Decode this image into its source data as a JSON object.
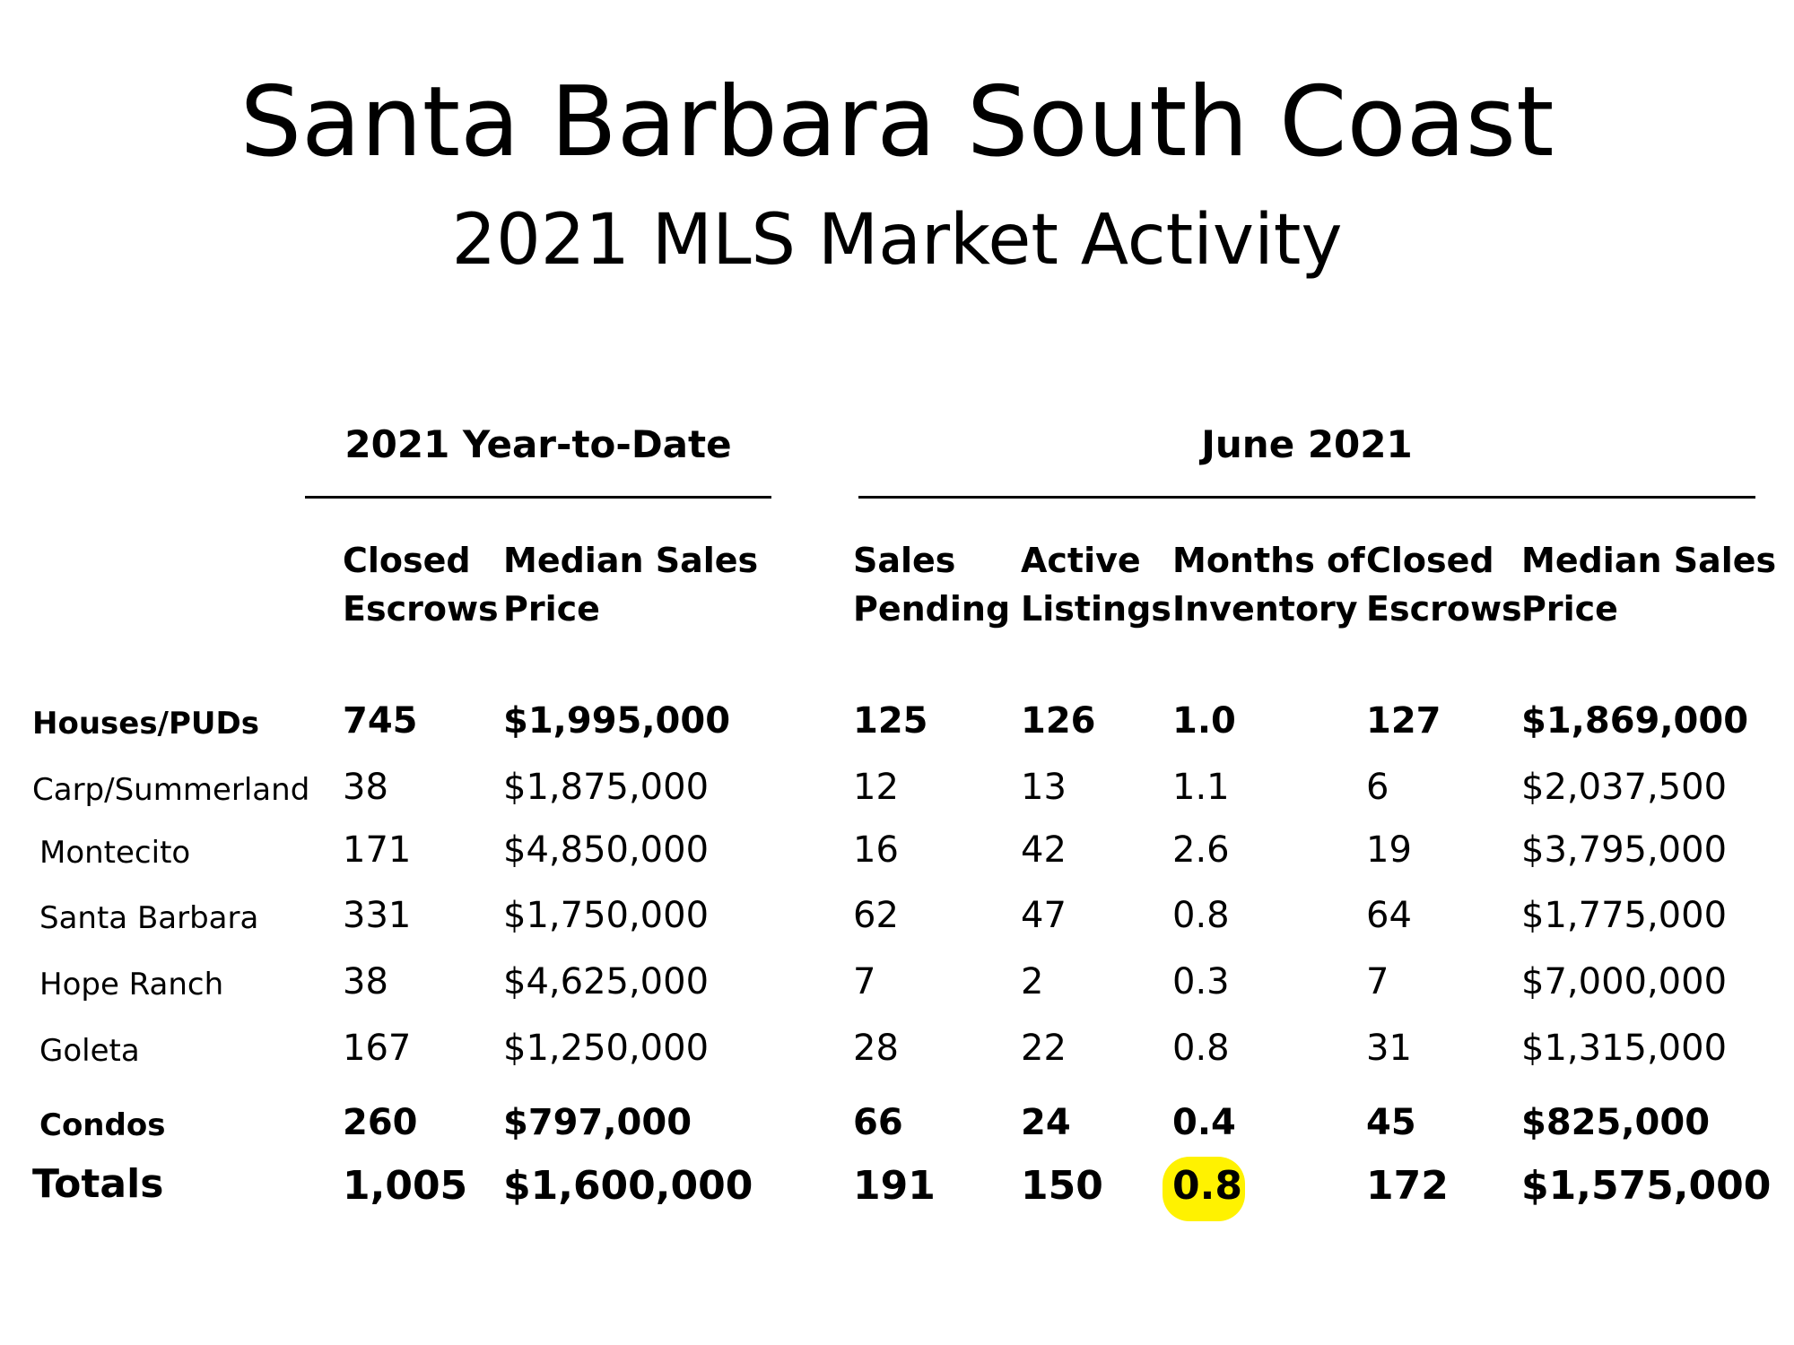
{
  "title": "Santa Barbara South Coast",
  "subtitle": "2021 MLS Market Activity",
  "groups": {
    "ytd": "2021 Year-to-Date",
    "month": "June 2021"
  },
  "columns": [
    "Closed\nEscrows",
    "Median Sales\nPrice",
    "Sales\nPending",
    "Active\nListings",
    "Months of\nInventory",
    "Closed\nEscrows",
    "Median Sales\nPrice"
  ],
  "rows": [
    {
      "label": "Houses/PUDs",
      "bold": true,
      "values": [
        "745",
        "$1,995,000",
        "125",
        "126",
        "1.0",
        "127",
        "$1,869,000"
      ]
    },
    {
      "label": "Carp/Summerland",
      "bold": false,
      "values": [
        "38",
        "$1,875,000",
        "12",
        "13",
        "1.1",
        "6",
        "$2,037,500"
      ]
    },
    {
      "label": "Montecito",
      "bold": false,
      "values": [
        "171",
        "$4,850,000",
        "16",
        "42",
        "2.6",
        "19",
        "$3,795,000"
      ]
    },
    {
      "label": "Santa Barbara",
      "bold": false,
      "values": [
        "331",
        "$1,750,000",
        "62",
        "47",
        "0.8",
        "64",
        "$1,775,000"
      ]
    },
    {
      "label": "Hope Ranch",
      "bold": false,
      "values": [
        "38",
        "$4,625,000",
        "7",
        "2",
        "0.3",
        "7",
        "$7,000,000"
      ]
    },
    {
      "label": "Goleta",
      "bold": false,
      "values": [
        "167",
        "$1,250,000",
        "28",
        "22",
        "0.8",
        "31",
        "$1,315,000"
      ]
    },
    {
      "label": "Condos",
      "bold": true,
      "values": [
        "260",
        "$797,000",
        "66",
        "24",
        "0.4",
        "45",
        "$825,000"
      ]
    },
    {
      "label": "Totals",
      "bold": true,
      "values": [
        "1,005",
        "$1,600,000",
        "191",
        "150",
        "0.8",
        "172",
        "$1,575,000"
      ]
    }
  ],
  "highlight_color": "#fff200"
}
